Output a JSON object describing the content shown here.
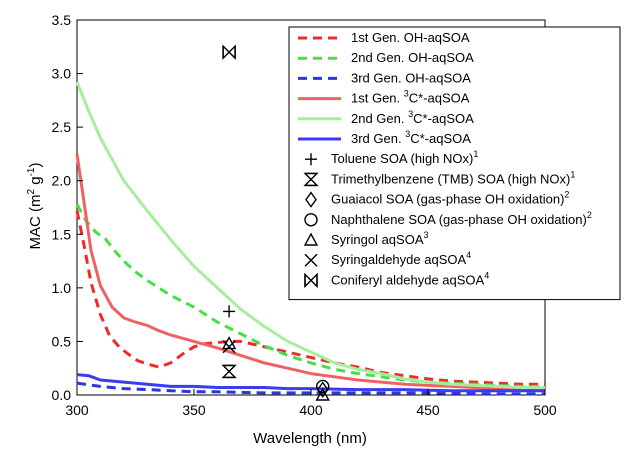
{
  "chart_data": {
    "type": "line",
    "xlabel": "Wavelength (nm)",
    "ylabel": "MAC (m",
    "ylabel_sup1": "2",
    "ylabel_mid": " g",
    "ylabel_sup2": "-1",
    "ylabel_end": ")",
    "xlim": [
      300,
      500
    ],
    "ylim": [
      0,
      3.5
    ],
    "xticks": [
      300,
      350,
      400,
      450,
      500
    ],
    "yticks": [
      0.0,
      0.5,
      1.0,
      1.5,
      2.0,
      2.5,
      3.0,
      3.5
    ],
    "ytick_labels": [
      "0.0",
      "0.5",
      "1.0",
      "1.5",
      "2.0",
      "2.5",
      "3.0",
      "3.5"
    ],
    "legend_position": "top-right",
    "grid": false,
    "series": [
      {
        "name": "1st Gen. OH-aqSOA",
        "color": "#ee2b2b",
        "dash": true,
        "x": [
          300,
          303,
          306,
          310,
          314,
          318,
          322,
          326,
          330,
          335,
          340,
          345,
          350,
          355,
          360,
          365,
          370,
          380,
          390,
          400,
          410,
          420,
          430,
          440,
          450,
          460,
          470,
          480,
          490,
          500
        ],
        "y": [
          1.72,
          1.4,
          1.05,
          0.75,
          0.55,
          0.45,
          0.38,
          0.32,
          0.29,
          0.26,
          0.3,
          0.38,
          0.45,
          0.48,
          0.49,
          0.5,
          0.5,
          0.45,
          0.4,
          0.35,
          0.3,
          0.26,
          0.21,
          0.18,
          0.15,
          0.13,
          0.12,
          0.11,
          0.1,
          0.1
        ]
      },
      {
        "name": "2nd Gen. OH-aqSOA",
        "color": "#46e046",
        "dash": true,
        "x": [
          300,
          304,
          308,
          312,
          316,
          320,
          325,
          330,
          340,
          350,
          360,
          370,
          380,
          390,
          400,
          410,
          420,
          430,
          440,
          450,
          460,
          470,
          480,
          490,
          500
        ],
        "y": [
          1.78,
          1.62,
          1.52,
          1.46,
          1.35,
          1.25,
          1.15,
          1.07,
          0.93,
          0.82,
          0.68,
          0.57,
          0.46,
          0.37,
          0.3,
          0.24,
          0.2,
          0.17,
          0.14,
          0.12,
          0.11,
          0.1,
          0.09,
          0.08,
          0.08
        ]
      },
      {
        "name": "3rd Gen. OH-aqSOA",
        "color": "#2b35e6",
        "dash": true,
        "x": [
          300,
          310,
          320,
          330,
          340,
          350,
          360,
          380,
          400,
          420,
          450,
          480,
          500
        ],
        "y": [
          0.11,
          0.08,
          0.06,
          0.05,
          0.04,
          0.03,
          0.03,
          0.02,
          0.02,
          0.02,
          0.02,
          0.01,
          0.01
        ]
      },
      {
        "name": "1st Gen. ",
        "name_sup": "3",
        "name_tail": "C*-aqSOA",
        "color": "#f06262",
        "dash": false,
        "x": [
          300,
          303,
          306,
          310,
          315,
          320,
          325,
          330,
          335,
          340,
          345,
          350,
          360,
          370,
          380,
          390,
          400,
          410,
          420,
          430,
          440,
          450,
          460,
          470,
          480,
          490,
          500
        ],
        "y": [
          2.25,
          1.8,
          1.35,
          1.02,
          0.82,
          0.72,
          0.68,
          0.65,
          0.6,
          0.56,
          0.53,
          0.5,
          0.44,
          0.37,
          0.3,
          0.25,
          0.2,
          0.17,
          0.14,
          0.12,
          0.1,
          0.09,
          0.08,
          0.07,
          0.06,
          0.06,
          0.05
        ]
      },
      {
        "name": "2nd Gen. ",
        "name_sup": "3",
        "name_tail": "C*-aqSOA",
        "color": "#a6ee9c",
        "dash": false,
        "x": [
          300,
          305,
          310,
          315,
          320,
          330,
          340,
          350,
          360,
          370,
          380,
          390,
          400,
          410,
          420,
          430,
          440,
          450,
          460,
          470,
          480,
          490,
          500
        ],
        "y": [
          2.92,
          2.65,
          2.4,
          2.2,
          2.0,
          1.72,
          1.45,
          1.2,
          1.0,
          0.8,
          0.64,
          0.5,
          0.4,
          0.3,
          0.24,
          0.2,
          0.15,
          0.12,
          0.1,
          0.09,
          0.08,
          0.07,
          0.07
        ]
      },
      {
        "name": "3rd Gen. ",
        "name_sup": "3",
        "name_tail": "C*-aqSOA",
        "color": "#3b3bf2",
        "dash": false,
        "x": [
          300,
          305,
          310,
          320,
          330,
          340,
          350,
          360,
          370,
          380,
          390,
          400,
          420,
          440,
          460,
          480,
          500
        ],
        "y": [
          0.19,
          0.18,
          0.14,
          0.12,
          0.1,
          0.08,
          0.08,
          0.07,
          0.07,
          0.07,
          0.06,
          0.06,
          0.05,
          0.05,
          0.04,
          0.04,
          0.04
        ]
      }
    ],
    "markers": [
      {
        "name": "Toluene SOA (high NOx)",
        "sup": "1",
        "symbol": "plus",
        "points": [
          [
            365,
            0.78
          ]
        ]
      },
      {
        "name": "Trimethylbenzene (TMB) SOA (high NOx)",
        "sup": "1",
        "symbol": "hourglass",
        "points": [
          [
            365,
            0.22
          ]
        ]
      },
      {
        "name": "Guaiacol SOA (gas-phase OH oxidation)",
        "sup": "2",
        "symbol": "diamond",
        "points": [
          [
            405,
            0.05
          ]
        ]
      },
      {
        "name": "Naphthalene SOA (gas-phase OH oxidation)",
        "sup": "2",
        "symbol": "circle",
        "points": [
          [
            405,
            0.08
          ]
        ]
      },
      {
        "name": "Syringol aqSOA",
        "sup": "3",
        "symbol": "triangle",
        "points": [
          [
            365,
            0.48
          ],
          [
            405,
            0.0
          ]
        ]
      },
      {
        "name": "Syringaldehyde aqSOA",
        "sup": "4",
        "symbol": "cross",
        "points": [
          [
            365,
            0.45
          ]
        ]
      },
      {
        "name": "Coniferyl aldehyde aqSOA",
        "sup": "4",
        "symbol": "bowtie",
        "points": [
          [
            365,
            3.2
          ]
        ]
      }
    ]
  }
}
